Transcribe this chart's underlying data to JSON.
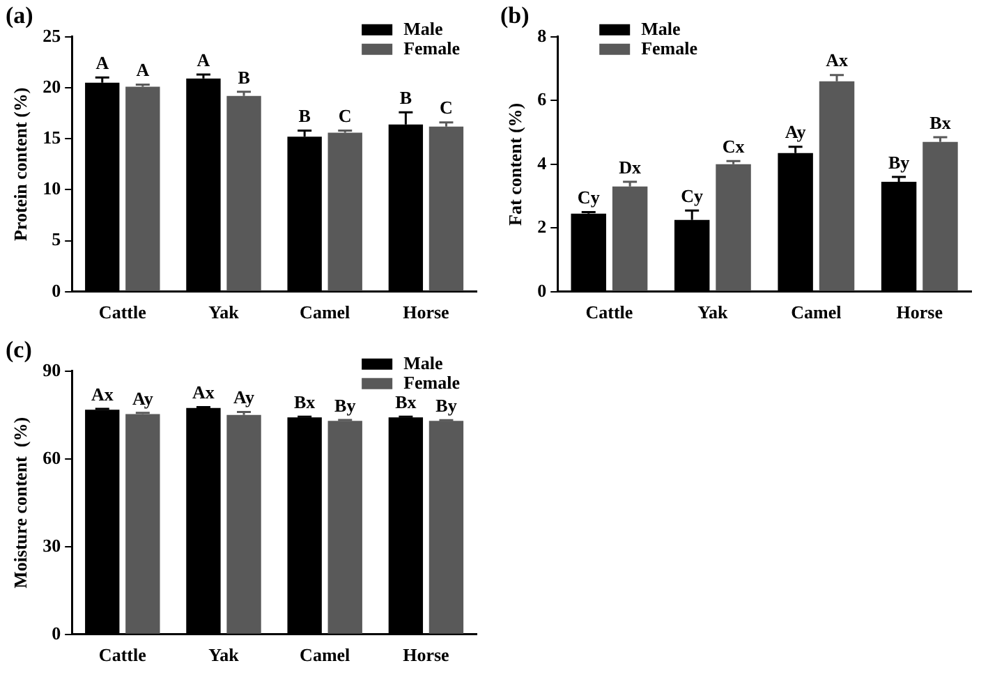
{
  "chart_data": [
    {
      "type": "bar",
      "title": "(a)",
      "ylabel": "Protein content (%)",
      "categories": [
        "Cattle",
        "Yak",
        "Camel",
        "Horse"
      ],
      "ylim": [
        0,
        25
      ],
      "yticks": [
        0,
        5,
        10,
        15,
        20,
        25
      ],
      "grid": false,
      "legend": "top right",
      "series": [
        {
          "name": "Male",
          "color": "#000000",
          "values": [
            20.5,
            20.9,
            15.2,
            16.4
          ],
          "errors": [
            0.5,
            0.4,
            0.6,
            1.2
          ],
          "value_labels": [
            "A",
            "A",
            "B",
            "B"
          ]
        },
        {
          "name": "Female",
          "color": "#595959",
          "values": [
            20.1,
            19.2,
            15.6,
            16.2
          ],
          "errors": [
            0.2,
            0.4,
            0.2,
            0.4
          ],
          "value_labels": [
            "A",
            "B",
            "C",
            "C"
          ]
        }
      ]
    },
    {
      "type": "bar",
      "title": "(b)",
      "ylabel": "Fat content (%)",
      "categories": [
        "Cattle",
        "Yak",
        "Camel",
        "Horse"
      ],
      "ylim": [
        0,
        8
      ],
      "yticks": [
        0,
        2,
        4,
        6,
        8
      ],
      "grid": false,
      "legend": "top left",
      "series": [
        {
          "name": "Male",
          "color": "#000000",
          "values": [
            2.45,
            2.25,
            4.35,
            3.45
          ],
          "errors": [
            0.05,
            0.3,
            0.2,
            0.15
          ],
          "value_labels": [
            "Cy",
            "Cy",
            "Ay",
            "By"
          ]
        },
        {
          "name": "Female",
          "color": "#595959",
          "values": [
            3.3,
            4.0,
            6.6,
            4.7
          ],
          "errors": [
            0.15,
            0.1,
            0.2,
            0.15
          ],
          "value_labels": [
            "Dx",
            "Cx",
            "Ax",
            "Bx"
          ]
        }
      ]
    },
    {
      "type": "bar",
      "title": "(c)",
      "ylabel": "Moisture content  (%)",
      "categories": [
        "Cattle",
        "Yak",
        "Camel",
        "Horse"
      ],
      "ylim": [
        0,
        90
      ],
      "yticks": [
        0,
        30,
        60,
        90
      ],
      "grid": false,
      "legend": "top right",
      "series": [
        {
          "name": "Male",
          "color": "#000000",
          "values": [
            76.8,
            77.4,
            74.2,
            74.2
          ],
          "errors": [
            0.3,
            0.3,
            0.2,
            0.2
          ],
          "value_labels": [
            "Ax",
            "Ax",
            "Bx",
            "Bx"
          ]
        },
        {
          "name": "Female",
          "color": "#595959",
          "values": [
            75.3,
            75.0,
            73.0,
            73.0
          ],
          "errors": [
            0.4,
            1.0,
            0.3,
            0.2
          ],
          "value_labels": [
            "Ay",
            "Ay",
            "By",
            "By"
          ]
        }
      ]
    }
  ]
}
